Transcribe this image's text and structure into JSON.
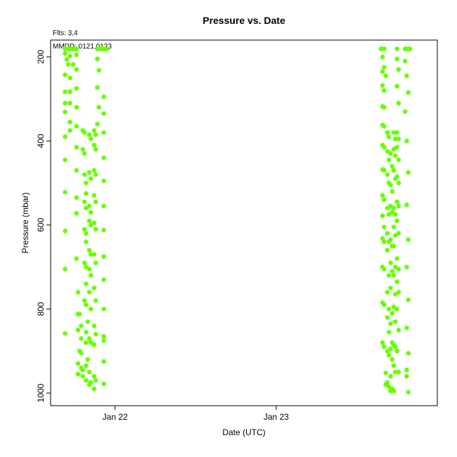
{
  "chart_data": {
    "type": "scatter",
    "title": "Pressure  vs. Date",
    "subtitle": "Flts: 3,4",
    "annotation": "MMDD: 0121,0123",
    "xlabel": "Date (UTC)",
    "ylabel": "Pressure (mbar)",
    "x_unit": "day",
    "x_range": [
      21.6,
      24.0
    ],
    "ylim": [
      1030,
      160
    ],
    "y_axis_inverted": true,
    "x_ticks": [
      {
        "value": 22,
        "label": "Jan 22"
      },
      {
        "value": 23,
        "label": "Jan 23"
      }
    ],
    "y_ticks": [
      {
        "value": 200,
        "label": "200"
      },
      {
        "value": 400,
        "label": "400"
      },
      {
        "value": 600,
        "label": "600"
      },
      {
        "value": 800,
        "label": "800"
      },
      {
        "value": 1000,
        "label": "1000"
      }
    ],
    "grid": false,
    "legend": "none",
    "marker_color": "#66ff00",
    "series": [
      {
        "points": [
          [
            21.69,
            181
          ],
          [
            21.7,
            181
          ],
          [
            21.71,
            181
          ],
          [
            21.72,
            181
          ],
          [
            21.73,
            181
          ],
          [
            21.74,
            181
          ],
          [
            21.75,
            181
          ],
          [
            21.76,
            181
          ],
          [
            21.69,
            192
          ],
          [
            21.72,
            198
          ],
          [
            21.7,
            206
          ],
          [
            21.71,
            218
          ],
          [
            21.74,
            218
          ],
          [
            21.69,
            243
          ],
          [
            21.72,
            250
          ],
          [
            21.69,
            283
          ],
          [
            21.72,
            283
          ],
          [
            21.69,
            310
          ],
          [
            21.72,
            310
          ],
          [
            21.69,
            331
          ],
          [
            21.72,
            355
          ],
          [
            21.72,
            375
          ],
          [
            21.69,
            390
          ],
          [
            21.69,
            445
          ],
          [
            21.69,
            522
          ],
          [
            21.69,
            614
          ],
          [
            21.69,
            705
          ],
          [
            21.69,
            858
          ],
          [
            21.76,
            195
          ],
          [
            21.76,
            230
          ],
          [
            21.76,
            275
          ],
          [
            21.76,
            320
          ],
          [
            21.76,
            365
          ],
          [
            21.76,
            415
          ],
          [
            21.76,
            470
          ],
          [
            21.76,
            535
          ],
          [
            21.76,
            572
          ],
          [
            21.76,
            680
          ],
          [
            21.77,
            760
          ],
          [
            21.77,
            812
          ],
          [
            21.77,
            850
          ],
          [
            21.78,
            900
          ],
          [
            21.77,
            930
          ],
          [
            21.77,
            955
          ],
          [
            21.78,
            812
          ],
          [
            21.79,
            840
          ],
          [
            21.79,
            870
          ],
          [
            21.79,
            905
          ],
          [
            21.79,
            940
          ],
          [
            21.8,
            945
          ],
          [
            21.8,
            960
          ],
          [
            21.8,
            375
          ],
          [
            21.81,
            380
          ],
          [
            21.8,
            420
          ],
          [
            21.81,
            430
          ],
          [
            21.81,
            480
          ],
          [
            21.82,
            500
          ],
          [
            21.82,
            525
          ],
          [
            21.81,
            545
          ],
          [
            21.82,
            560
          ],
          [
            21.81,
            610
          ],
          [
            21.82,
            620
          ],
          [
            21.82,
            640
          ],
          [
            21.81,
            690
          ],
          [
            21.82,
            700
          ],
          [
            21.82,
            740
          ],
          [
            21.81,
            780
          ],
          [
            21.82,
            790
          ],
          [
            21.83,
            830
          ],
          [
            21.82,
            855
          ],
          [
            21.82,
            880
          ],
          [
            21.83,
            920
          ],
          [
            21.82,
            935
          ],
          [
            21.82,
            970
          ],
          [
            21.84,
            385
          ],
          [
            21.85,
            395
          ],
          [
            21.84,
            475
          ],
          [
            21.85,
            490
          ],
          [
            21.84,
            555
          ],
          [
            21.85,
            570
          ],
          [
            21.84,
            590
          ],
          [
            21.85,
            600
          ],
          [
            21.84,
            660
          ],
          [
            21.85,
            670
          ],
          [
            21.84,
            705
          ],
          [
            21.85,
            720
          ],
          [
            21.84,
            760
          ],
          [
            21.85,
            800
          ],
          [
            21.84,
            870
          ],
          [
            21.85,
            880
          ],
          [
            21.84,
            950
          ],
          [
            21.85,
            975
          ],
          [
            21.84,
            980
          ],
          [
            21.87,
            375
          ],
          [
            21.88,
            385
          ],
          [
            21.87,
            410
          ],
          [
            21.88,
            420
          ],
          [
            21.87,
            470
          ],
          [
            21.88,
            480
          ],
          [
            21.87,
            530
          ],
          [
            21.88,
            545
          ],
          [
            21.87,
            595
          ],
          [
            21.88,
            610
          ],
          [
            21.87,
            670
          ],
          [
            21.88,
            690
          ],
          [
            21.87,
            750
          ],
          [
            21.88,
            780
          ],
          [
            21.87,
            840
          ],
          [
            21.88,
            860
          ],
          [
            21.87,
            885
          ],
          [
            21.87,
            960
          ],
          [
            21.88,
            970
          ],
          [
            21.87,
            990
          ],
          [
            21.89,
            181
          ],
          [
            21.9,
            181
          ],
          [
            21.91,
            181
          ],
          [
            21.92,
            181
          ],
          [
            21.93,
            181
          ],
          [
            21.94,
            181
          ],
          [
            21.95,
            181
          ],
          [
            21.89,
            205
          ],
          [
            21.9,
            232
          ],
          [
            21.89,
            273
          ],
          [
            21.9,
            320
          ],
          [
            21.89,
            360
          ],
          [
            21.93,
            295
          ],
          [
            21.93,
            335
          ],
          [
            21.93,
            380
          ],
          [
            21.93,
            440
          ],
          [
            21.93,
            495
          ],
          [
            21.93,
            555
          ],
          [
            21.93,
            612
          ],
          [
            21.93,
            675
          ],
          [
            21.93,
            730
          ],
          [
            21.93,
            800
          ],
          [
            21.93,
            865
          ],
          [
            21.93,
            875
          ],
          [
            21.93,
            925
          ],
          [
            21.93,
            978
          ],
          [
            23.65,
            181
          ],
          [
            23.66,
            181
          ],
          [
            23.67,
            181
          ],
          [
            23.66,
            200
          ],
          [
            23.67,
            225
          ],
          [
            23.66,
            235
          ],
          [
            23.68,
            245
          ],
          [
            23.66,
            268
          ],
          [
            23.67,
            280
          ],
          [
            23.66,
            318
          ],
          [
            23.67,
            320
          ],
          [
            23.66,
            362
          ],
          [
            23.67,
            365
          ],
          [
            23.66,
            410
          ],
          [
            23.67,
            415
          ],
          [
            23.66,
            468
          ],
          [
            23.67,
            470
          ],
          [
            23.66,
            530
          ],
          [
            23.67,
            540
          ],
          [
            23.66,
            578
          ],
          [
            23.67,
            605
          ],
          [
            23.66,
            632
          ],
          [
            23.67,
            640
          ],
          [
            23.66,
            700
          ],
          [
            23.67,
            705
          ],
          [
            23.66,
            785
          ],
          [
            23.67,
            790
          ],
          [
            23.66,
            880
          ],
          [
            23.67,
            890
          ],
          [
            23.68,
            952
          ],
          [
            23.68,
            980
          ],
          [
            23.69,
            380
          ],
          [
            23.7,
            390
          ],
          [
            23.69,
            425
          ],
          [
            23.7,
            445
          ],
          [
            23.69,
            480
          ],
          [
            23.7,
            500
          ],
          [
            23.69,
            560
          ],
          [
            23.7,
            575
          ],
          [
            23.69,
            620
          ],
          [
            23.7,
            640
          ],
          [
            23.69,
            660
          ],
          [
            23.7,
            720
          ],
          [
            23.69,
            760
          ],
          [
            23.7,
            800
          ],
          [
            23.69,
            820
          ],
          [
            23.7,
            855
          ],
          [
            23.69,
            900
          ],
          [
            23.7,
            910
          ],
          [
            23.69,
            975
          ],
          [
            23.7,
            985
          ],
          [
            23.71,
            430
          ],
          [
            23.72,
            460
          ],
          [
            23.71,
            505
          ],
          [
            23.72,
            520
          ],
          [
            23.71,
            555
          ],
          [
            23.72,
            570
          ],
          [
            23.71,
            635
          ],
          [
            23.72,
            650
          ],
          [
            23.71,
            690
          ],
          [
            23.72,
            710
          ],
          [
            23.71,
            750
          ],
          [
            23.72,
            810
          ],
          [
            23.71,
            835
          ],
          [
            23.72,
            880
          ],
          [
            23.71,
            895
          ],
          [
            23.72,
            920
          ],
          [
            23.71,
            960
          ],
          [
            23.72,
            990
          ],
          [
            23.71,
            995
          ],
          [
            23.73,
            380
          ],
          [
            23.74,
            395
          ],
          [
            23.73,
            420
          ],
          [
            23.74,
            435
          ],
          [
            23.73,
            470
          ],
          [
            23.74,
            490
          ],
          [
            23.73,
            560
          ],
          [
            23.74,
            575
          ],
          [
            23.73,
            605
          ],
          [
            23.74,
            625
          ],
          [
            23.73,
            650
          ],
          [
            23.74,
            700
          ],
          [
            23.73,
            720
          ],
          [
            23.74,
            765
          ],
          [
            23.73,
            795
          ],
          [
            23.74,
            830
          ],
          [
            23.73,
            885
          ],
          [
            23.74,
            890
          ],
          [
            23.73,
            935
          ],
          [
            23.74,
            950
          ],
          [
            23.73,
            995
          ],
          [
            23.75,
            181
          ],
          [
            23.75,
            205
          ],
          [
            23.76,
            230
          ],
          [
            23.75,
            270
          ],
          [
            23.76,
            310
          ],
          [
            23.75,
            380
          ],
          [
            23.76,
            395
          ],
          [
            23.75,
            415
          ],
          [
            23.76,
            445
          ],
          [
            23.75,
            485
          ],
          [
            23.76,
            500
          ],
          [
            23.75,
            545
          ],
          [
            23.76,
            555
          ],
          [
            23.75,
            590
          ],
          [
            23.76,
            620
          ],
          [
            23.75,
            680
          ],
          [
            23.76,
            705
          ],
          [
            23.75,
            735
          ],
          [
            23.76,
            760
          ],
          [
            23.75,
            800
          ],
          [
            23.76,
            850
          ],
          [
            23.75,
            900
          ],
          [
            23.76,
            950
          ],
          [
            23.8,
            181
          ],
          [
            23.81,
            181
          ],
          [
            23.82,
            181
          ],
          [
            23.83,
            181
          ],
          [
            23.8,
            210
          ],
          [
            23.81,
            245
          ],
          [
            23.82,
            285
          ],
          [
            23.8,
            330
          ],
          [
            23.81,
            400
          ],
          [
            23.82,
            475
          ],
          [
            23.81,
            552
          ],
          [
            23.82,
            635
          ],
          [
            23.81,
            700
          ],
          [
            23.82,
            778
          ],
          [
            23.81,
            845
          ],
          [
            23.82,
            905
          ],
          [
            23.81,
            945
          ],
          [
            23.82,
            998
          ],
          [
            23.82,
            285
          ],
          [
            23.81,
            960
          ]
        ]
      }
    ]
  }
}
